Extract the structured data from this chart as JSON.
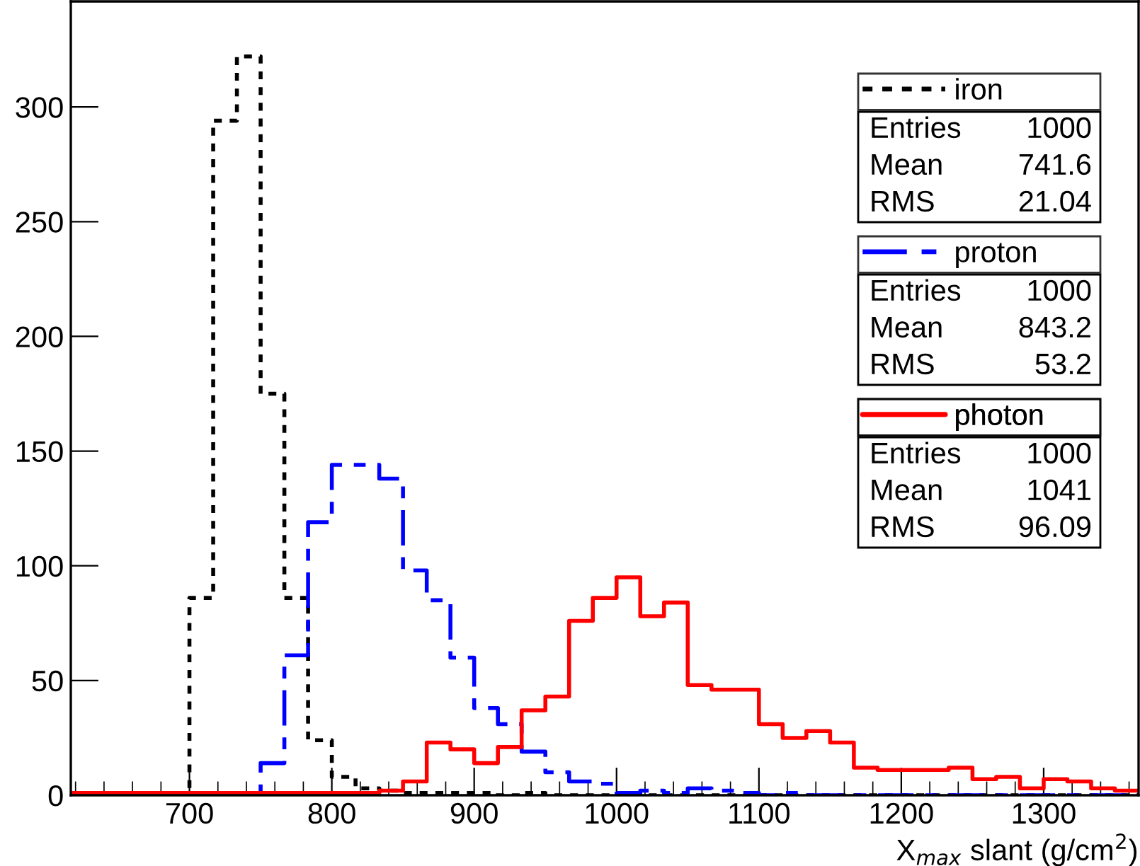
{
  "chart_data": {
    "type": "histogram",
    "xlabel": "X$_{max}$ slant (g/cm$^{2}$)",
    "bins": [
      616.67,
      633.33,
      650,
      666.67,
      683.33,
      700,
      716.67,
      733.33,
      750,
      766.67,
      783.33,
      800,
      816.67,
      833.33,
      850,
      866.67,
      883.33,
      900,
      916.67,
      933.33,
      950,
      966.67,
      983.33,
      1000,
      1016.67,
      1033.33,
      1050,
      1066.67,
      1083.33,
      1100,
      1116.67,
      1133.33,
      1150,
      1166.67,
      1183.33,
      1200,
      1216.67,
      1233.33,
      1250,
      1266.67,
      1283.33,
      1300,
      1316.67,
      1333.33,
      1350,
      1366.67
    ],
    "series": [
      {
        "name": "iron",
        "color": "#000000",
        "line_style": "dotted",
        "values": [
          0,
          0,
          0,
          0,
          1,
          86,
          294,
          322,
          175,
          86,
          24,
          8,
          3,
          2,
          1,
          1,
          1,
          1,
          0,
          1,
          0,
          0,
          0,
          0,
          0,
          0,
          0,
          0,
          0,
          0,
          0,
          0,
          0,
          0,
          0,
          0,
          0,
          0,
          0,
          0,
          0,
          0,
          0,
          0,
          0
        ]
      },
      {
        "name": "proton",
        "color": "#0000ff",
        "line_style": "dashed",
        "values": [
          0,
          0,
          0,
          0,
          0,
          0,
          0,
          0,
          14,
          61,
          119,
          144,
          144,
          138,
          98,
          85,
          60,
          38,
          31,
          19,
          10,
          6,
          5,
          1,
          2,
          1,
          3,
          2,
          1,
          0,
          1,
          0,
          0,
          0,
          0,
          0,
          0,
          0,
          0,
          0,
          0,
          0,
          0,
          0,
          0
        ]
      },
      {
        "name": "photon",
        "color": "#ff0000",
        "line_style": "solid",
        "values": [
          1,
          1,
          1,
          1,
          1,
          1,
          1,
          1,
          1,
          1,
          1,
          1,
          1,
          2,
          6,
          23,
          20,
          14,
          21,
          37,
          43,
          76,
          86,
          95,
          78,
          84,
          48,
          46,
          46,
          31,
          25,
          28,
          23,
          12,
          11,
          11,
          11,
          12,
          7,
          8,
          3,
          7,
          6,
          3,
          2
        ]
      }
    ],
    "annotations": [
      "Entries 1000",
      "Mean 741.6",
      "RMS 21.04",
      "Entries 1000",
      "Mean 843.2",
      "RMS 53.2",
      "Entries 1000",
      "Mean 1041",
      "RMS 96.09"
    ],
    "xlim": [
      616.67,
      1366.67
    ],
    "ylim": [
      0,
      346
    ],
    "xticks": [
      700,
      800,
      900,
      1000,
      1100,
      1200,
      1300
    ],
    "yticks": [
      0,
      50,
      100,
      150,
      200,
      250,
      300
    ],
    "legend": "top right",
    "grid": false
  }
}
